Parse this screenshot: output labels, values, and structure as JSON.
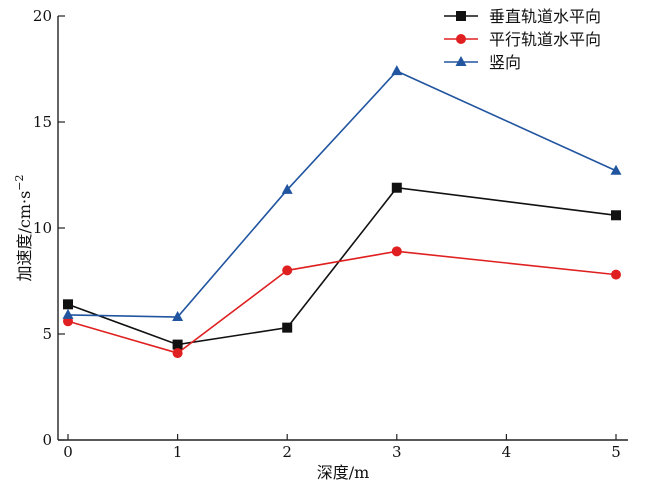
{
  "chart_data": {
    "type": "line",
    "title": "",
    "xlabel": "深度/m",
    "ylabel": "加速度/cm·s",
    "ylabel_sup": "−2",
    "x": [
      0,
      1,
      2,
      3,
      4,
      5
    ],
    "xlim": [
      0,
      5
    ],
    "ylim": [
      0,
      20
    ],
    "x_ticks": [
      "0",
      "1",
      "2",
      "3",
      "4",
      "5"
    ],
    "y_ticks": [
      "0",
      "5",
      "10",
      "15",
      "20"
    ],
    "grid": false,
    "legend_position": "top-right",
    "series": [
      {
        "name": "垂直轨道水平向",
        "color": "#111111",
        "marker": "square",
        "x": [
          0,
          1,
          2,
          3,
          5
        ],
        "values": [
          6.4,
          4.5,
          5.3,
          11.9,
          10.6
        ]
      },
      {
        "name": "平行轨道水平向",
        "color": "#e02020",
        "marker": "circle",
        "x": [
          0,
          1,
          2,
          3,
          5
        ],
        "values": [
          5.6,
          4.1,
          8.0,
          8.9,
          7.8
        ]
      },
      {
        "name": "竖向",
        "color": "#2255a0",
        "marker": "triangle",
        "x": [
          0,
          1,
          2,
          3,
          5
        ],
        "values": [
          5.9,
          5.8,
          11.8,
          17.4,
          12.7
        ]
      }
    ]
  }
}
